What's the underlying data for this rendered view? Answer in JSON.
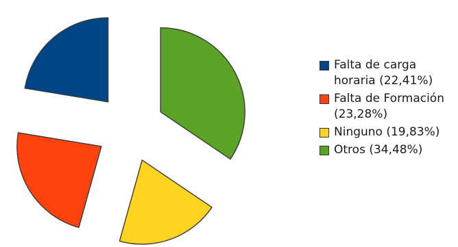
{
  "chart_data": {
    "type": "pie",
    "exploded": true,
    "start_angle_deg": 0,
    "direction": "clockwise",
    "legend_position": "right",
    "slices": [
      {
        "label": "Otros",
        "legend_text": "Otros (34,48%)",
        "value": 34.48,
        "color": "#5aa324"
      },
      {
        "label": "Ninguno",
        "legend_text": "Ninguno (19,83%)",
        "value": 19.83,
        "color": "#ffd320"
      },
      {
        "label": "Falta de Formación",
        "legend_text": "Falta de Formación (23,28%)",
        "value": 23.28,
        "color": "#ff420e"
      },
      {
        "label": "Falta de carga horaria",
        "legend_text": "Falta  de carga horaria (22,41%)",
        "value": 22.41,
        "color": "#004586"
      }
    ],
    "legend_order": [
      3,
      2,
      1,
      0
    ]
  }
}
